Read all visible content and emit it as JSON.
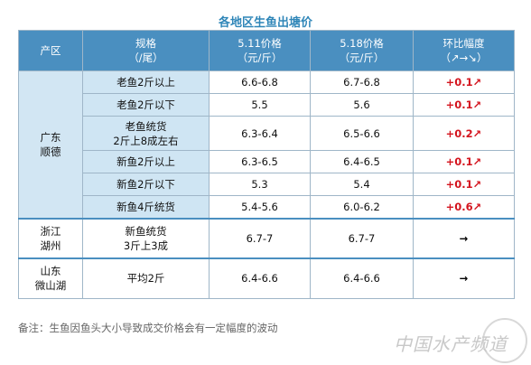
{
  "title": "各地区生鱼出塘价",
  "headers": {
    "region": "产区",
    "spec_line1": "规格",
    "spec_line2": "（/尾）",
    "p1_line1": "5.11价格",
    "p1_line2": "（元/斤）",
    "p2_line1": "5.18价格",
    "p2_line2": "（元/斤）",
    "chg_line1": "环比幅度",
    "chg_line2": "（↗→↘）"
  },
  "groups": [
    {
      "region_line1": "广东",
      "region_line2": "顺德",
      "rows": [
        {
          "spec": "老鱼2斤以上",
          "spec2": "",
          "p1": "6.6-6.8",
          "p2": "6.7-6.8",
          "chg": "+0.1↗"
        },
        {
          "spec": "老鱼2斤以下",
          "spec2": "",
          "p1": "5.5",
          "p2": "5.6",
          "chg": "+0.1↗"
        },
        {
          "spec": "老鱼统货",
          "spec2": "2斤上8成左右",
          "p1": "6.3-6.4",
          "p2": "6.5-6.6",
          "chg": "+0.2↗"
        },
        {
          "spec": "新鱼2斤以上",
          "spec2": "",
          "p1": "6.3-6.5",
          "p2": "6.4-6.5",
          "chg": "+0.1↗"
        },
        {
          "spec": "新鱼2斤以下",
          "spec2": "",
          "p1": "5.3",
          "p2": "5.4",
          "chg": "+0.1↗"
        },
        {
          "spec": "新鱼4斤统货",
          "spec2": "",
          "p1": "5.4-5.6",
          "p2": "6.0-6.2",
          "chg": "+0.6↗"
        }
      ]
    },
    {
      "region_line1": "浙江",
      "region_line2": "湖州",
      "rows": [
        {
          "spec": "新鱼统货",
          "spec2": "3斤上3成",
          "p1": "6.7-7",
          "p2": "6.7-7",
          "chg": "→"
        }
      ]
    },
    {
      "region_line1": "山东",
      "region_line2": "微山湖",
      "rows": [
        {
          "spec": "平均2斤",
          "spec2": "",
          "p1": "6.4-6.6",
          "p2": "6.4-6.6",
          "chg": "→"
        }
      ]
    }
  ],
  "note_label": "备注：",
  "note_text": "生鱼因鱼头大小导致成交价格会有一定幅度的波动",
  "watermark": "中国水产频道",
  "colors": {
    "header_bg": "#4a8fc0",
    "spec_bg": "#cfe5f3",
    "up": "#d4141e"
  }
}
